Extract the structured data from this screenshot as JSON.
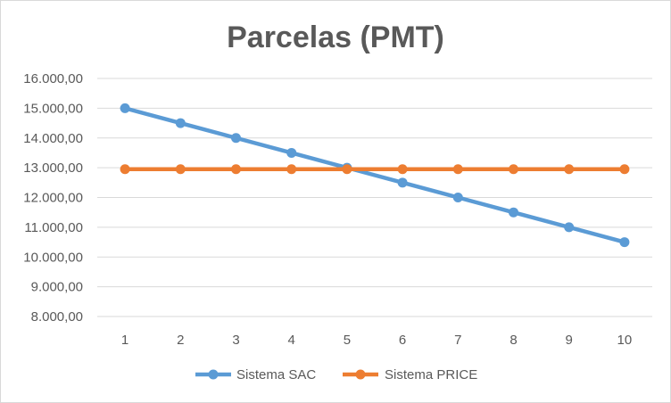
{
  "chart_data": {
    "type": "line",
    "title": "Parcelas (PMT)",
    "xlabel": "",
    "ylabel": "",
    "categories": [
      "1",
      "2",
      "3",
      "4",
      "5",
      "6",
      "7",
      "8",
      "9",
      "10"
    ],
    "ylim": [
      8000,
      16000
    ],
    "yticks": [
      8000,
      9000,
      10000,
      11000,
      12000,
      13000,
      14000,
      15000,
      16000
    ],
    "ytick_labels": [
      "8.000,00",
      "9.000,00",
      "10.000,00",
      "11.000,00",
      "12.000,00",
      "13.000,00",
      "14.000,00",
      "15.000,00",
      "16.000,00"
    ],
    "grid": true,
    "legend_position": "bottom",
    "series": [
      {
        "name": "Sistema SAC",
        "color": "#5b9bd5",
        "values": [
          15000,
          14500,
          14000,
          13500,
          13000,
          12500,
          12000,
          11500,
          11000,
          10500
        ]
      },
      {
        "name": "Sistema PRICE",
        "color": "#ed7d31",
        "values": [
          12950,
          12950,
          12950,
          12950,
          12950,
          12950,
          12950,
          12950,
          12950,
          12950
        ]
      }
    ]
  }
}
